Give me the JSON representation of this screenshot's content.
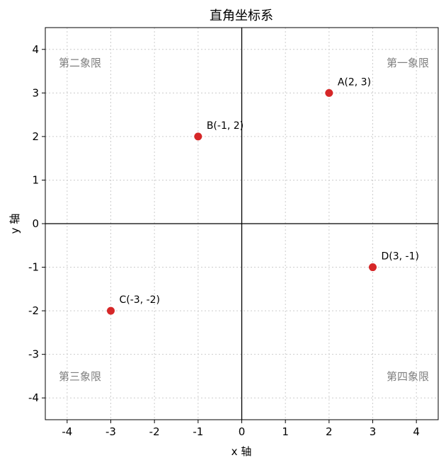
{
  "chart_data": {
    "type": "scatter",
    "title": "直角坐标系",
    "xlabel": "x 轴",
    "ylabel": "y 轴",
    "xlim": [
      -4.5,
      4.5
    ],
    "ylim": [
      -4.5,
      4.5
    ],
    "xticks": [
      -4,
      -3,
      -2,
      -1,
      0,
      1,
      2,
      3,
      4
    ],
    "yticks": [
      -4,
      -3,
      -2,
      -1,
      0,
      1,
      2,
      3,
      4
    ],
    "grid": true,
    "point_color": "#d62728",
    "quadrant_label_color": "#7f7f7f",
    "points": [
      {
        "label": "A(2, 3)",
        "x": 2,
        "y": 3
      },
      {
        "label": "B(-1, 2)",
        "x": -1,
        "y": 2
      },
      {
        "label": "C(-3, -2)",
        "x": -3,
        "y": -2
      },
      {
        "label": "D(3, -1)",
        "x": 3,
        "y": -1
      }
    ],
    "quadrants": [
      {
        "label": "第一象限",
        "position": "top-right"
      },
      {
        "label": "第二象限",
        "position": "top-left"
      },
      {
        "label": "第三象限",
        "position": "bottom-left"
      },
      {
        "label": "第四象限",
        "position": "bottom-right"
      }
    ]
  }
}
